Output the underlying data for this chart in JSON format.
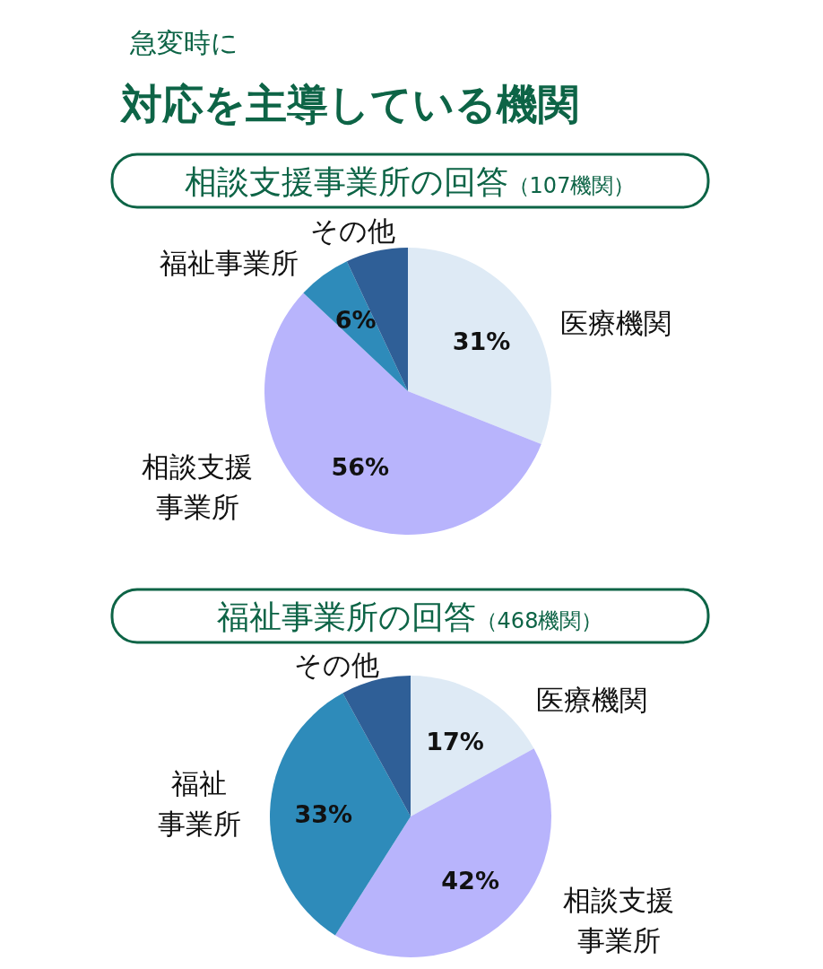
{
  "chart_data": [
    {
      "type": "pie",
      "annotations": [
        "急変時に",
        "対応を主導している機関"
      ],
      "title": "相談支援事業所の回答",
      "subtitle": "（107機関）",
      "categories": [
        "医療機関",
        "相談支援事業所",
        "福祉事業所",
        "その他"
      ],
      "values": [
        31,
        56,
        6,
        7
      ],
      "colors": [
        "#deeaf5",
        "#b8b4fc",
        "#2e8bba",
        "#2f5f97"
      ],
      "value_labels": [
        "31%",
        "56%",
        "6%",
        null
      ]
    },
    {
      "type": "pie",
      "title": "福祉事業所の回答",
      "subtitle": "（468機関）",
      "categories": [
        "医療機関",
        "相談支援事業所",
        "福祉事業所",
        "その他"
      ],
      "values": [
        17,
        42,
        33,
        8
      ],
      "colors": [
        "#deeaf5",
        "#b8b4fc",
        "#2e8bba",
        "#2f5f97"
      ],
      "value_labels": [
        "17%",
        "42%",
        "33%",
        null
      ]
    }
  ]
}
